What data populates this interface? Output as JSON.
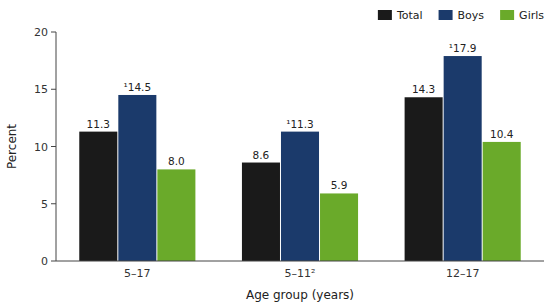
{
  "chart_data": {
    "type": "bar",
    "x_label": "Age group (years)",
    "y_label": "Percent",
    "categories": [
      "5–17",
      "5–11²",
      "12–17"
    ],
    "series": [
      {
        "name": "Total",
        "color": "#1a1a1a",
        "values": [
          11.3,
          8.6,
          14.3
        ]
      },
      {
        "name": "Boys",
        "color": "#1b3a6b",
        "values": [
          14.5,
          11.3,
          17.9
        ],
        "value_labels": [
          "¹14.5",
          "¹11.3",
          "¹17.9"
        ]
      },
      {
        "name": "Girls",
        "color": "#6aaa2a",
        "values": [
          8.0,
          5.9,
          10.4
        ],
        "value_labels": [
          "8.0",
          "5.9",
          "10.4"
        ]
      }
    ],
    "ylim": [
      0,
      20
    ],
    "yticks": [
      0,
      5,
      10,
      15,
      20
    ],
    "grid": false,
    "legend": "top-right",
    "data_labels": true
  }
}
